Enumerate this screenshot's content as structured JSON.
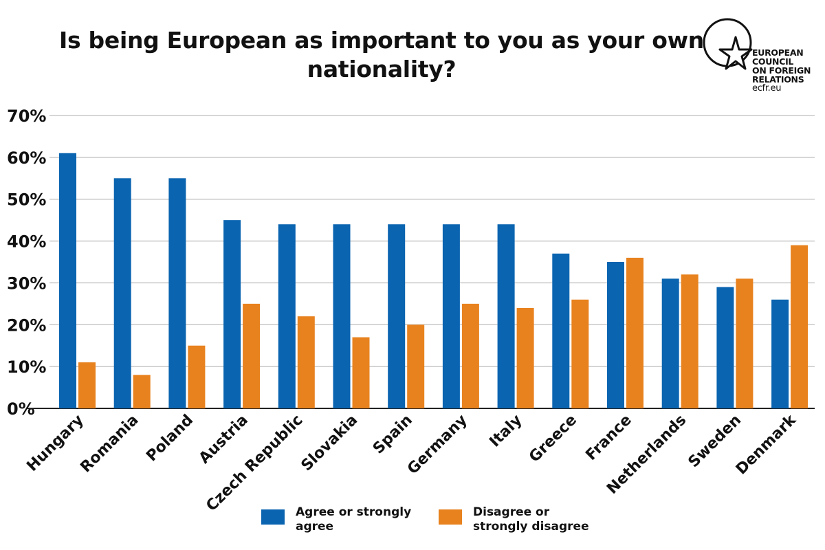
{
  "title": "Is being European as important to you as your own nationality?",
  "logo": {
    "lines": [
      "EUROPEAN",
      "COUNCIL",
      "ON FOREIGN",
      "RELATIONS"
    ],
    "url": "ecfr.eu",
    "star_icon": "star-icon"
  },
  "colors": {
    "agree": "#0a64b0",
    "disagree": "#e8821e",
    "grid": "#c8c8c8",
    "axis": "#222222"
  },
  "chart_data": {
    "type": "bar",
    "title": "Is being European as important to you as your own nationality?",
    "categories": [
      "Hungary",
      "Romania",
      "Poland",
      "Austria",
      "Czech Republic",
      "Slovakia",
      "Spain",
      "Germany",
      "Italy",
      "Greece",
      "France",
      "Netherlands",
      "Sweden",
      "Denmark"
    ],
    "series": [
      {
        "name": "Agree or strongly agree",
        "values": [
          61,
          55,
          55,
          45,
          44,
          44,
          44,
          44,
          44,
          37,
          35,
          31,
          29,
          26
        ]
      },
      {
        "name": "Disagree or strongly disagree",
        "values": [
          11,
          8,
          15,
          25,
          22,
          17,
          20,
          25,
          24,
          26,
          36,
          32,
          31,
          39
        ]
      }
    ],
    "yticks": [
      "0%",
      "10%",
      "20%",
      "30%",
      "40%",
      "50%",
      "60%",
      "70%"
    ],
    "ylim": [
      0,
      70
    ],
    "grid": true,
    "legend_position": "bottom"
  }
}
